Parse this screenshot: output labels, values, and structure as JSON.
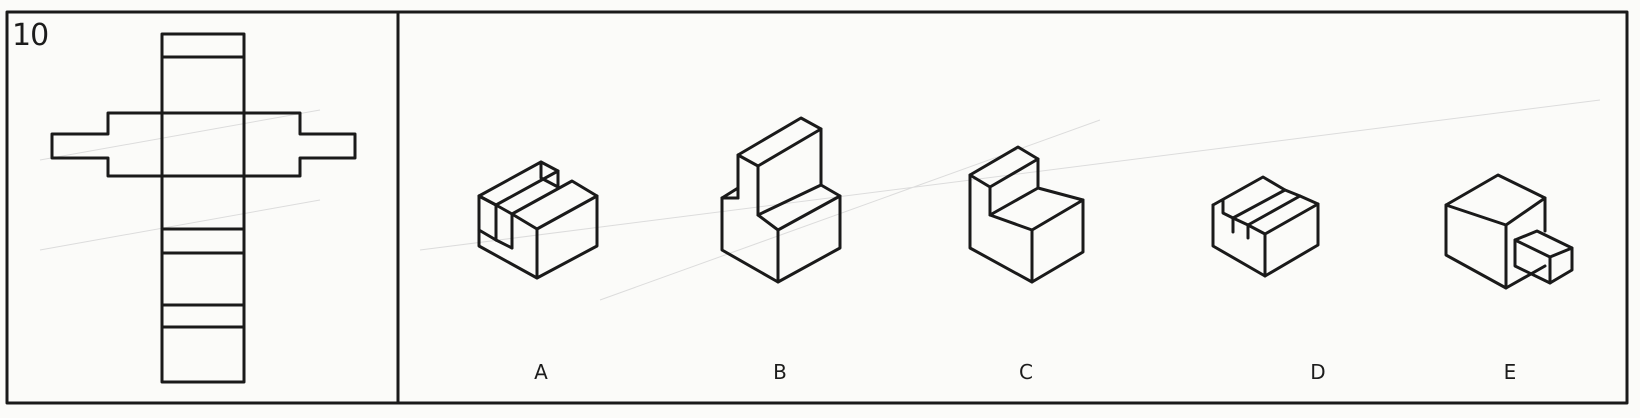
{
  "puzzle": {
    "number": "10"
  },
  "options": [
    {
      "label": "A"
    },
    {
      "label": "B"
    },
    {
      "label": "C"
    },
    {
      "label": "D"
    },
    {
      "label": "E"
    }
  ],
  "colors": {
    "ink": "#1a1a1a",
    "paper": "#fbfbf9"
  }
}
